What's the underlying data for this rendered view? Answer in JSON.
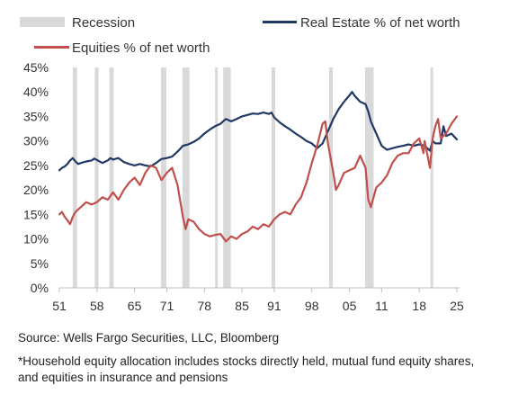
{
  "chart_data": {
    "type": "line",
    "title": "",
    "xlabel": "",
    "ylabel": "",
    "xlim": [
      1951,
      2025.5
    ],
    "ylim": [
      0,
      45
    ],
    "y_tick_step": 5,
    "y_tick_format": "{v}%",
    "x_ticks": [
      1951,
      1958,
      1965,
      1971,
      1978,
      1985,
      1991,
      1998,
      2005,
      2011,
      2018,
      2025
    ],
    "x_tick_labels": [
      "51",
      "58",
      "65",
      "71",
      "78",
      "85",
      "91",
      "98",
      "05",
      "11",
      "18",
      "25"
    ],
    "grid": false,
    "legend_position": "top",
    "legend_labels": {
      "recession": "Recession",
      "real_estate": "Real Estate % of net worth",
      "equities": "Equities % of net worth"
    },
    "colors": {
      "real_estate": "#1f3864",
      "equities": "#c0504d",
      "recession": "#d9d9d9",
      "axis": "#bfbfbf"
    },
    "recessions": [
      [
        1953.5,
        1954.3
      ],
      [
        1957.6,
        1958.3
      ],
      [
        1960.3,
        1961.1
      ],
      [
        1969.9,
        1970.9
      ],
      [
        1973.9,
        1975.2
      ],
      [
        1980.0,
        1980.5
      ],
      [
        1981.5,
        1982.9
      ],
      [
        1990.5,
        1991.2
      ],
      [
        2001.2,
        2001.9
      ],
      [
        2007.9,
        2009.5
      ],
      [
        2020.1,
        2020.4
      ]
    ],
    "series": [
      {
        "key": "real_estate",
        "name": "Real Estate % of net worth",
        "points": [
          [
            1951.0,
            24.0
          ],
          [
            1951.5,
            24.5
          ],
          [
            1952.0,
            24.8
          ],
          [
            1952.5,
            25.3
          ],
          [
            1953.0,
            26.0
          ],
          [
            1953.5,
            26.5
          ],
          [
            1954.0,
            25.8
          ],
          [
            1954.5,
            25.3
          ],
          [
            1955.0,
            25.5
          ],
          [
            1956.0,
            25.8
          ],
          [
            1957.0,
            26.0
          ],
          [
            1957.5,
            26.4
          ],
          [
            1958.0,
            26.1
          ],
          [
            1959.0,
            25.5
          ],
          [
            1960.0,
            26.0
          ],
          [
            1960.5,
            26.5
          ],
          [
            1961.0,
            26.2
          ],
          [
            1962.0,
            26.5
          ],
          [
            1963.0,
            25.7
          ],
          [
            1964.0,
            25.3
          ],
          [
            1965.0,
            25.0
          ],
          [
            1966.0,
            25.3
          ],
          [
            1967.0,
            25.0
          ],
          [
            1968.0,
            24.8
          ],
          [
            1969.0,
            25.5
          ],
          [
            1970.0,
            26.3
          ],
          [
            1971.0,
            26.5
          ],
          [
            1972.0,
            26.8
          ],
          [
            1973.0,
            27.8
          ],
          [
            1974.0,
            29.0
          ],
          [
            1975.0,
            29.3
          ],
          [
            1976.0,
            29.8
          ],
          [
            1977.0,
            30.5
          ],
          [
            1978.0,
            31.5
          ],
          [
            1979.0,
            32.3
          ],
          [
            1980.0,
            33.0
          ],
          [
            1981.0,
            33.5
          ],
          [
            1982.0,
            34.5
          ],
          [
            1983.0,
            34.0
          ],
          [
            1984.0,
            34.5
          ],
          [
            1985.0,
            35.0
          ],
          [
            1986.0,
            35.3
          ],
          [
            1987.0,
            35.6
          ],
          [
            1988.0,
            35.5
          ],
          [
            1989.0,
            35.8
          ],
          [
            1990.0,
            35.5
          ],
          [
            1990.5,
            35.8
          ],
          [
            1991.0,
            34.8
          ],
          [
            1992.0,
            33.8
          ],
          [
            1993.0,
            33.0
          ],
          [
            1994.0,
            32.3
          ],
          [
            1995.0,
            31.5
          ],
          [
            1996.0,
            30.8
          ],
          [
            1997.0,
            30.0
          ],
          [
            1998.0,
            29.5
          ],
          [
            1999.0,
            28.5
          ],
          [
            2000.0,
            29.5
          ],
          [
            2001.0,
            32.0
          ],
          [
            2002.0,
            34.5
          ],
          [
            2003.0,
            36.5
          ],
          [
            2004.0,
            38.0
          ],
          [
            2005.0,
            39.3
          ],
          [
            2005.5,
            40.0
          ],
          [
            2006.0,
            39.2
          ],
          [
            2007.0,
            38.0
          ],
          [
            2008.0,
            37.5
          ],
          [
            2008.5,
            36.0
          ],
          [
            2009.0,
            34.0
          ],
          [
            2010.0,
            31.5
          ],
          [
            2011.0,
            29.0
          ],
          [
            2012.0,
            28.2
          ],
          [
            2013.0,
            28.5
          ],
          [
            2014.0,
            28.8
          ],
          [
            2015.0,
            29.0
          ],
          [
            2016.0,
            29.3
          ],
          [
            2017.0,
            29.0
          ],
          [
            2018.0,
            29.3
          ],
          [
            2019.0,
            29.0
          ],
          [
            2020.0,
            28.0
          ],
          [
            2020.5,
            30.0
          ],
          [
            2021.0,
            29.5
          ],
          [
            2022.0,
            29.5
          ],
          [
            2022.5,
            33.0
          ],
          [
            2023.0,
            31.0
          ],
          [
            2024.0,
            31.5
          ],
          [
            2025.0,
            30.3
          ]
        ]
      },
      {
        "key": "equities",
        "name": "Equities % of net worth",
        "points": [
          [
            1951.0,
            15.0
          ],
          [
            1951.5,
            15.5
          ],
          [
            1952.0,
            14.5
          ],
          [
            1952.5,
            13.8
          ],
          [
            1953.0,
            13.0
          ],
          [
            1953.5,
            14.5
          ],
          [
            1954.0,
            15.5
          ],
          [
            1955.0,
            16.5
          ],
          [
            1956.0,
            17.5
          ],
          [
            1957.0,
            17.0
          ],
          [
            1958.0,
            17.5
          ],
          [
            1959.0,
            18.5
          ],
          [
            1960.0,
            18.0
          ],
          [
            1961.0,
            19.5
          ],
          [
            1962.0,
            18.0
          ],
          [
            1963.0,
            20.0
          ],
          [
            1964.0,
            21.5
          ],
          [
            1965.0,
            22.5
          ],
          [
            1966.0,
            21.0
          ],
          [
            1967.0,
            23.5
          ],
          [
            1968.0,
            25.0
          ],
          [
            1969.0,
            24.5
          ],
          [
            1970.0,
            22.0
          ],
          [
            1971.0,
            23.5
          ],
          [
            1972.0,
            24.5
          ],
          [
            1973.0,
            21.0
          ],
          [
            1974.0,
            14.5
          ],
          [
            1974.5,
            12.0
          ],
          [
            1975.0,
            14.0
          ],
          [
            1976.0,
            13.5
          ],
          [
            1977.0,
            12.0
          ],
          [
            1978.0,
            11.0
          ],
          [
            1979.0,
            10.5
          ],
          [
            1980.0,
            10.8
          ],
          [
            1981.0,
            11.0
          ],
          [
            1982.0,
            9.5
          ],
          [
            1983.0,
            10.5
          ],
          [
            1984.0,
            10.0
          ],
          [
            1985.0,
            11.0
          ],
          [
            1986.0,
            11.5
          ],
          [
            1987.0,
            12.5
          ],
          [
            1988.0,
            12.0
          ],
          [
            1989.0,
            13.0
          ],
          [
            1990.0,
            12.5
          ],
          [
            1991.0,
            14.0
          ],
          [
            1992.0,
            15.0
          ],
          [
            1993.0,
            15.5
          ],
          [
            1994.0,
            15.0
          ],
          [
            1995.0,
            17.0
          ],
          [
            1996.0,
            18.5
          ],
          [
            1997.0,
            21.5
          ],
          [
            1998.0,
            25.5
          ],
          [
            1999.0,
            29.0
          ],
          [
            2000.0,
            33.5
          ],
          [
            2000.5,
            34.0
          ],
          [
            2001.0,
            29.5
          ],
          [
            2002.0,
            23.5
          ],
          [
            2002.5,
            20.0
          ],
          [
            2003.0,
            21.0
          ],
          [
            2004.0,
            23.5
          ],
          [
            2005.0,
            24.0
          ],
          [
            2006.0,
            24.5
          ],
          [
            2007.0,
            27.0
          ],
          [
            2008.0,
            24.5
          ],
          [
            2008.5,
            18.0
          ],
          [
            2009.0,
            16.5
          ],
          [
            2010.0,
            20.5
          ],
          [
            2011.0,
            21.5
          ],
          [
            2012.0,
            23.0
          ],
          [
            2013.0,
            25.5
          ],
          [
            2014.0,
            27.0
          ],
          [
            2015.0,
            27.5
          ],
          [
            2016.0,
            27.5
          ],
          [
            2017.0,
            29.5
          ],
          [
            2018.0,
            30.5
          ],
          [
            2018.8,
            27.5
          ],
          [
            2019.0,
            30.0
          ],
          [
            2020.0,
            24.5
          ],
          [
            2020.5,
            30.5
          ],
          [
            2021.0,
            33.0
          ],
          [
            2021.5,
            34.5
          ],
          [
            2022.0,
            30.5
          ],
          [
            2023.0,
            31.5
          ],
          [
            2024.0,
            33.5
          ],
          [
            2025.0,
            35.0
          ]
        ]
      }
    ]
  },
  "source": "Source: Wells Fargo Securities, LLC, Bloomberg",
  "footnote": "*Household equity allocation includes stocks directly held, mutual fund equity shares, and equities in insurance and pensions"
}
